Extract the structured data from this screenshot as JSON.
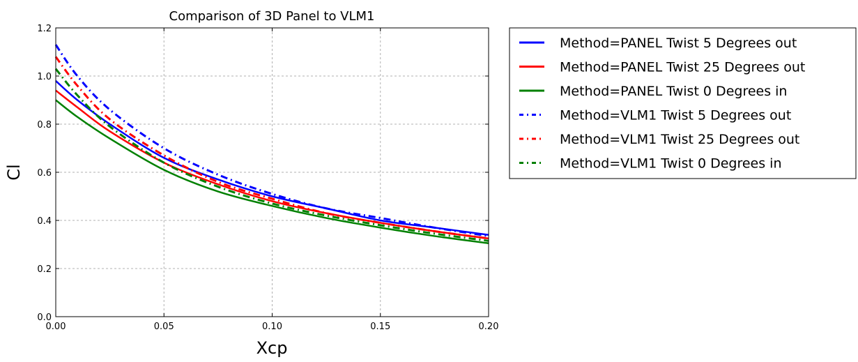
{
  "chart_data": {
    "type": "line",
    "title": "Comparison of 3D Panel to VLM1",
    "xlabel": "Xcp",
    "ylabel": "Cl",
    "xlim": [
      0.0,
      0.2
    ],
    "ylim": [
      0.0,
      1.2
    ],
    "xticks": [
      "0.00",
      "0.05",
      "0.10",
      "0.15",
      "0.20"
    ],
    "yticks": [
      "0.0",
      "0.2",
      "0.4",
      "0.6",
      "0.8",
      "1.0",
      "1.2"
    ],
    "grid": true,
    "legend_position": "outside-right-top",
    "x": [
      0.0,
      0.01,
      0.025,
      0.05,
      0.075,
      0.1,
      0.125,
      0.15,
      0.175,
      0.2
    ],
    "series": [
      {
        "name": "Method=PANEL Twist 5 Degrees out",
        "color": "#0000ff",
        "style": "solid",
        "values": [
          0.98,
          0.9,
          0.8,
          0.66,
          0.57,
          0.5,
          0.45,
          0.4,
          0.37,
          0.34
        ]
      },
      {
        "name": "Method=PANEL Twist 25 Degrees out",
        "color": "#ff0000",
        "style": "solid",
        "values": [
          0.94,
          0.87,
          0.77,
          0.64,
          0.55,
          0.48,
          0.43,
          0.39,
          0.355,
          0.325
        ]
      },
      {
        "name": "Method=PANEL Twist 0 Degrees in",
        "color": "#008000",
        "style": "solid",
        "values": [
          0.9,
          0.83,
          0.74,
          0.61,
          0.52,
          0.46,
          0.41,
          0.37,
          0.335,
          0.305
        ]
      },
      {
        "name": "Method=VLM1 Twist 5 Degrees out",
        "color": "#0000ff",
        "style": "dashdot",
        "values": [
          1.13,
          1.0,
          0.86,
          0.7,
          0.59,
          0.51,
          0.45,
          0.41,
          0.37,
          0.335
        ]
      },
      {
        "name": "Method=VLM1 Twist 25 Degrees out",
        "color": "#ff0000",
        "style": "dashdot",
        "values": [
          1.08,
          0.96,
          0.82,
          0.67,
          0.56,
          0.49,
          0.43,
          0.39,
          0.355,
          0.325
        ]
      },
      {
        "name": "Method=VLM1 Twist 0 Degrees in",
        "color": "#008000",
        "style": "dashdot",
        "values": [
          1.03,
          0.92,
          0.79,
          0.64,
          0.54,
          0.47,
          0.42,
          0.38,
          0.345,
          0.315
        ]
      }
    ]
  }
}
